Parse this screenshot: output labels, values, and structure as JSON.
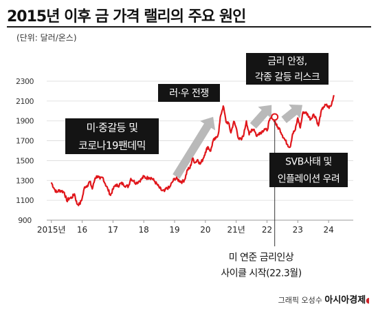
{
  "title": "2015년 이후 금 가격 랠리의 주요 원인",
  "unit": "(단위: 달러/온스)",
  "credit": {
    "prefix": "그래픽 오성수",
    "brand": "아시아경제"
  },
  "colors": {
    "line": "#e0161b",
    "arrow": "#b9b9b9",
    "box": "#141414",
    "box_text": "#ffffff",
    "grid": "#d9d9d9"
  },
  "annotations": [
    {
      "name": "annotation-trade-war",
      "lines": [
        "미·중갈등 및",
        "코로나19팬데믹"
      ]
    },
    {
      "name": "annotation-russia-ukraine",
      "lines": [
        "러·우 전쟁"
      ]
    },
    {
      "name": "annotation-rate-stability",
      "lines": [
        "금리 안정,",
        "각종 갈등 리스크"
      ]
    },
    {
      "name": "annotation-svb",
      "lines": [
        "SVB사태 및",
        "인플레이션 우려"
      ]
    },
    {
      "name": "annotation-fed-hike",
      "lines": [
        "미 연준 금리인상",
        "사이클 시작(22.3월)"
      ]
    }
  ],
  "chart_data": {
    "type": "line",
    "title": "2015년 이후 금 가격 랠리의 주요 원인",
    "xlabel": "",
    "ylabel": "(단위: 달러/온스)",
    "x_ticks": [
      "2015년",
      "16",
      "17",
      "18",
      "19",
      "20",
      "21년",
      "22",
      "23",
      "24"
    ],
    "y_ticks": [
      900,
      1100,
      1300,
      1500,
      1700,
      1900,
      2100,
      2300
    ],
    "ylim": [
      900,
      2300
    ],
    "xlim": [
      2014.85,
      2024.8
    ],
    "grid": true,
    "series": [
      {
        "name": "",
        "x": [
          2015.0,
          2015.08,
          2015.17,
          2015.25,
          2015.33,
          2015.42,
          2015.5,
          2015.58,
          2015.67,
          2015.75,
          2015.83,
          2015.92,
          2016.0,
          2016.08,
          2016.17,
          2016.25,
          2016.33,
          2016.42,
          2016.5,
          2016.58,
          2016.67,
          2016.75,
          2016.83,
          2016.92,
          2017.0,
          2017.08,
          2017.17,
          2017.25,
          2017.33,
          2017.42,
          2017.5,
          2017.58,
          2017.67,
          2017.75,
          2017.83,
          2017.92,
          2018.0,
          2018.08,
          2018.17,
          2018.25,
          2018.33,
          2018.42,
          2018.5,
          2018.58,
          2018.67,
          2018.75,
          2018.83,
          2018.92,
          2019.0,
          2019.08,
          2019.17,
          2019.25,
          2019.33,
          2019.42,
          2019.5,
          2019.58,
          2019.67,
          2019.75,
          2019.83,
          2019.92,
          2020.0,
          2020.08,
          2020.17,
          2020.25,
          2020.33,
          2020.42,
          2020.5,
          2020.58,
          2020.67,
          2020.75,
          2020.83,
          2020.92,
          2021.0,
          2021.08,
          2021.17,
          2021.25,
          2021.33,
          2021.42,
          2021.5,
          2021.58,
          2021.67,
          2021.75,
          2021.83,
          2021.92,
          2022.0,
          2022.08,
          2022.17,
          2022.25,
          2022.33,
          2022.42,
          2022.5,
          2022.58,
          2022.67,
          2022.75,
          2022.83,
          2022.92,
          2023.0,
          2023.08,
          2023.17,
          2023.25,
          2023.33,
          2023.42,
          2023.5,
          2023.58,
          2023.67,
          2023.75,
          2023.83,
          2023.92,
          2024.0,
          2024.08,
          2024.17
        ],
        "values": [
          1280,
          1225,
          1180,
          1200,
          1195,
          1180,
          1095,
          1120,
          1130,
          1165,
          1065,
          1060,
          1120,
          1235,
          1250,
          1290,
          1215,
          1325,
          1345,
          1315,
          1330,
          1265,
          1215,
          1150,
          1210,
          1255,
          1245,
          1270,
          1265,
          1245,
          1240,
          1320,
          1295,
          1275,
          1290,
          1310,
          1340,
          1325,
          1330,
          1325,
          1300,
          1265,
          1230,
          1200,
          1190,
          1225,
          1225,
          1280,
          1320,
          1315,
          1295,
          1285,
          1310,
          1410,
          1425,
          1520,
          1480,
          1510,
          1465,
          1515,
          1585,
          1640,
          1595,
          1700,
          1720,
          1770,
          1960,
          2050,
          1890,
          1880,
          1780,
          1895,
          1830,
          1720,
          1710,
          1770,
          1900,
          1760,
          1815,
          1815,
          1745,
          1780,
          1790,
          1820,
          1800,
          1905,
          1940,
          1900,
          1840,
          1815,
          1755,
          1710,
          1660,
          1635,
          1770,
          1810,
          1930,
          1830,
          1990,
          1985,
          1960,
          1915,
          1965,
          1940,
          1850,
          1985,
          2040,
          2060,
          2035,
          2050,
          2160
        ]
      }
    ],
    "arrows": [
      {
        "from": [
          2019.05,
          1340
        ],
        "to": [
          2020.25,
          1940
        ]
      },
      {
        "from": [
          2021.55,
          1850
        ],
        "to": [
          2022.15,
          2060
        ]
      },
      {
        "from": [
          2022.55,
          1910
        ],
        "to": [
          2023.15,
          2060
        ]
      }
    ],
    "marker": {
      "x": 2022.25,
      "y": 1940
    }
  }
}
